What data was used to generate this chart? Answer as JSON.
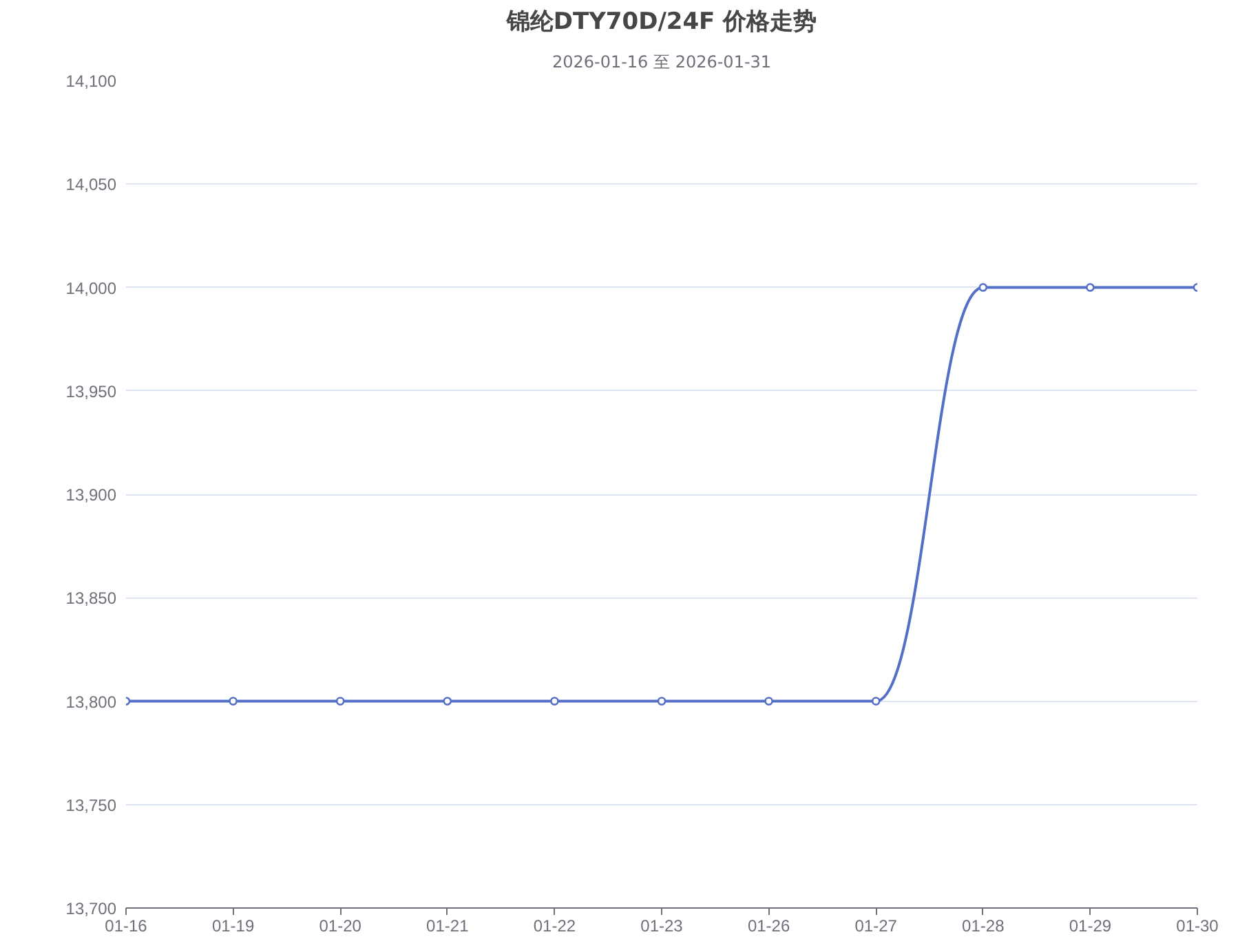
{
  "chart_data": {
    "type": "line",
    "title": "锦纶DTY70D/24F 价格走势",
    "subtitle": "2026-01-16 至 2026-01-31",
    "categories": [
      "01-16",
      "01-19",
      "01-20",
      "01-21",
      "01-22",
      "01-23",
      "01-26",
      "01-27",
      "01-28",
      "01-29",
      "01-30"
    ],
    "series": [
      {
        "color": "#5470c6",
        "values": [
          13800,
          13800,
          13800,
          13800,
          13800,
          13800,
          13800,
          13800,
          14000,
          14000,
          14000
        ]
      }
    ],
    "ylim": [
      13700,
      14100
    ],
    "yticks": [
      {
        "value": 13700,
        "label": "13,700"
      },
      {
        "value": 13750,
        "label": "13,750"
      },
      {
        "value": 13800,
        "label": "13,800"
      },
      {
        "value": 13850,
        "label": "13,850"
      },
      {
        "value": 13900,
        "label": "13,900"
      },
      {
        "value": 13950,
        "label": "13,950"
      },
      {
        "value": 14000,
        "label": "14,000"
      },
      {
        "value": 14050,
        "label": "14,050"
      },
      {
        "value": 14100,
        "label": "14,100"
      }
    ],
    "grid": "y",
    "marker": "circle",
    "line_style": "solid"
  }
}
